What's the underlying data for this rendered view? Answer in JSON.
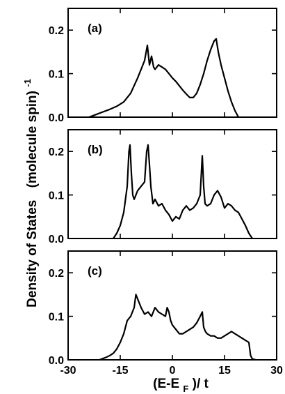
{
  "chart_data": {
    "type": "line",
    "ylabel": "Density of States",
    "ylabel_unit": "(molecule spin)",
    "ylabel_exponent": "-1",
    "xlabel_prefix": "(E-E",
    "xlabel_subscript": "F",
    "xlabel_suffix": ")/ t",
    "xlim": [
      -30,
      30
    ],
    "ylim": [
      0.0,
      0.25
    ],
    "xticks": [
      -30,
      -15,
      0,
      15,
      30
    ],
    "xtick_labels": [
      "-30",
      "-15",
      "0",
      "15",
      "30"
    ],
    "yticks": [
      0.0,
      0.1,
      0.2
    ],
    "ytick_labels": [
      "0.0",
      "0.1",
      "0.2"
    ],
    "grid": false,
    "panels": [
      {
        "label": "(a)",
        "x": [
          -24,
          -22,
          -20,
          -18,
          -16,
          -14,
          -12,
          -10,
          -9,
          -8,
          -7.2,
          -6.6,
          -6,
          -5.4,
          -5,
          -4,
          -3,
          -2,
          -1,
          0,
          1,
          2,
          3,
          4,
          5,
          6,
          7,
          8,
          9,
          10,
          11,
          12,
          12.6,
          13.2,
          14,
          15,
          16,
          17,
          18,
          19
        ],
        "y": [
          0,
          0.006,
          0.012,
          0.018,
          0.025,
          0.035,
          0.055,
          0.09,
          0.11,
          0.13,
          0.165,
          0.12,
          0.14,
          0.115,
          0.11,
          0.12,
          0.115,
          0.11,
          0.1,
          0.09,
          0.082,
          0.072,
          0.062,
          0.053,
          0.045,
          0.045,
          0.055,
          0.075,
          0.1,
          0.13,
          0.155,
          0.175,
          0.18,
          0.15,
          0.12,
          0.09,
          0.06,
          0.035,
          0.015,
          0
        ]
      },
      {
        "label": "(b)",
        "x": [
          -17,
          -16,
          -15,
          -14,
          -13,
          -12.5,
          -12.2,
          -11.8,
          -11.4,
          -11,
          -10,
          -9,
          -8,
          -7.4,
          -7,
          -6.6,
          -6.2,
          -5.6,
          -5,
          -4,
          -3,
          -2,
          -1,
          0,
          1,
          2,
          3,
          4,
          5,
          6,
          7,
          8,
          8.6,
          9,
          9.4,
          10,
          11,
          12,
          13,
          14,
          15,
          16,
          17,
          18,
          19,
          20,
          21,
          22,
          23
        ],
        "y": [
          0,
          0.012,
          0.03,
          0.06,
          0.12,
          0.2,
          0.215,
          0.15,
          0.1,
          0.09,
          0.11,
          0.12,
          0.13,
          0.2,
          0.215,
          0.17,
          0.12,
          0.08,
          0.09,
          0.075,
          0.08,
          0.065,
          0.055,
          0.04,
          0.05,
          0.045,
          0.065,
          0.075,
          0.065,
          0.07,
          0.08,
          0.1,
          0.19,
          0.12,
          0.08,
          0.075,
          0.08,
          0.1,
          0.11,
          0.095,
          0.07,
          0.08,
          0.075,
          0.065,
          0.06,
          0.045,
          0.03,
          0.012,
          0
        ]
      },
      {
        "label": "(c)",
        "x": [
          -21,
          -20,
          -19,
          -18,
          -17,
          -16,
          -15,
          -14,
          -13,
          -12,
          -11,
          -10.5,
          -10,
          -9.5,
          -9,
          -8,
          -7,
          -6,
          -5,
          -4,
          -3,
          -2,
          -1.5,
          -1,
          -0.5,
          0,
          1,
          2,
          3,
          4,
          5,
          6,
          7,
          8,
          8.6,
          9,
          9.5,
          10,
          11,
          12,
          13,
          14,
          15,
          16,
          17,
          18,
          19,
          20,
          21,
          22,
          22.5,
          23,
          24
        ],
        "y": [
          0,
          0.003,
          0.006,
          0.01,
          0.015,
          0.025,
          0.04,
          0.06,
          0.09,
          0.1,
          0.12,
          0.15,
          0.14,
          0.13,
          0.12,
          0.105,
          0.11,
          0.1,
          0.12,
          0.11,
          0.105,
          0.1,
          0.12,
          0.11,
          0.09,
          0.08,
          0.07,
          0.06,
          0.06,
          0.065,
          0.07,
          0.075,
          0.085,
          0.1,
          0.11,
          0.075,
          0.065,
          0.06,
          0.055,
          0.055,
          0.05,
          0.05,
          0.055,
          0.06,
          0.065,
          0.06,
          0.055,
          0.05,
          0.045,
          0.04,
          0.01,
          0.002,
          0
        ]
      }
    ]
  }
}
